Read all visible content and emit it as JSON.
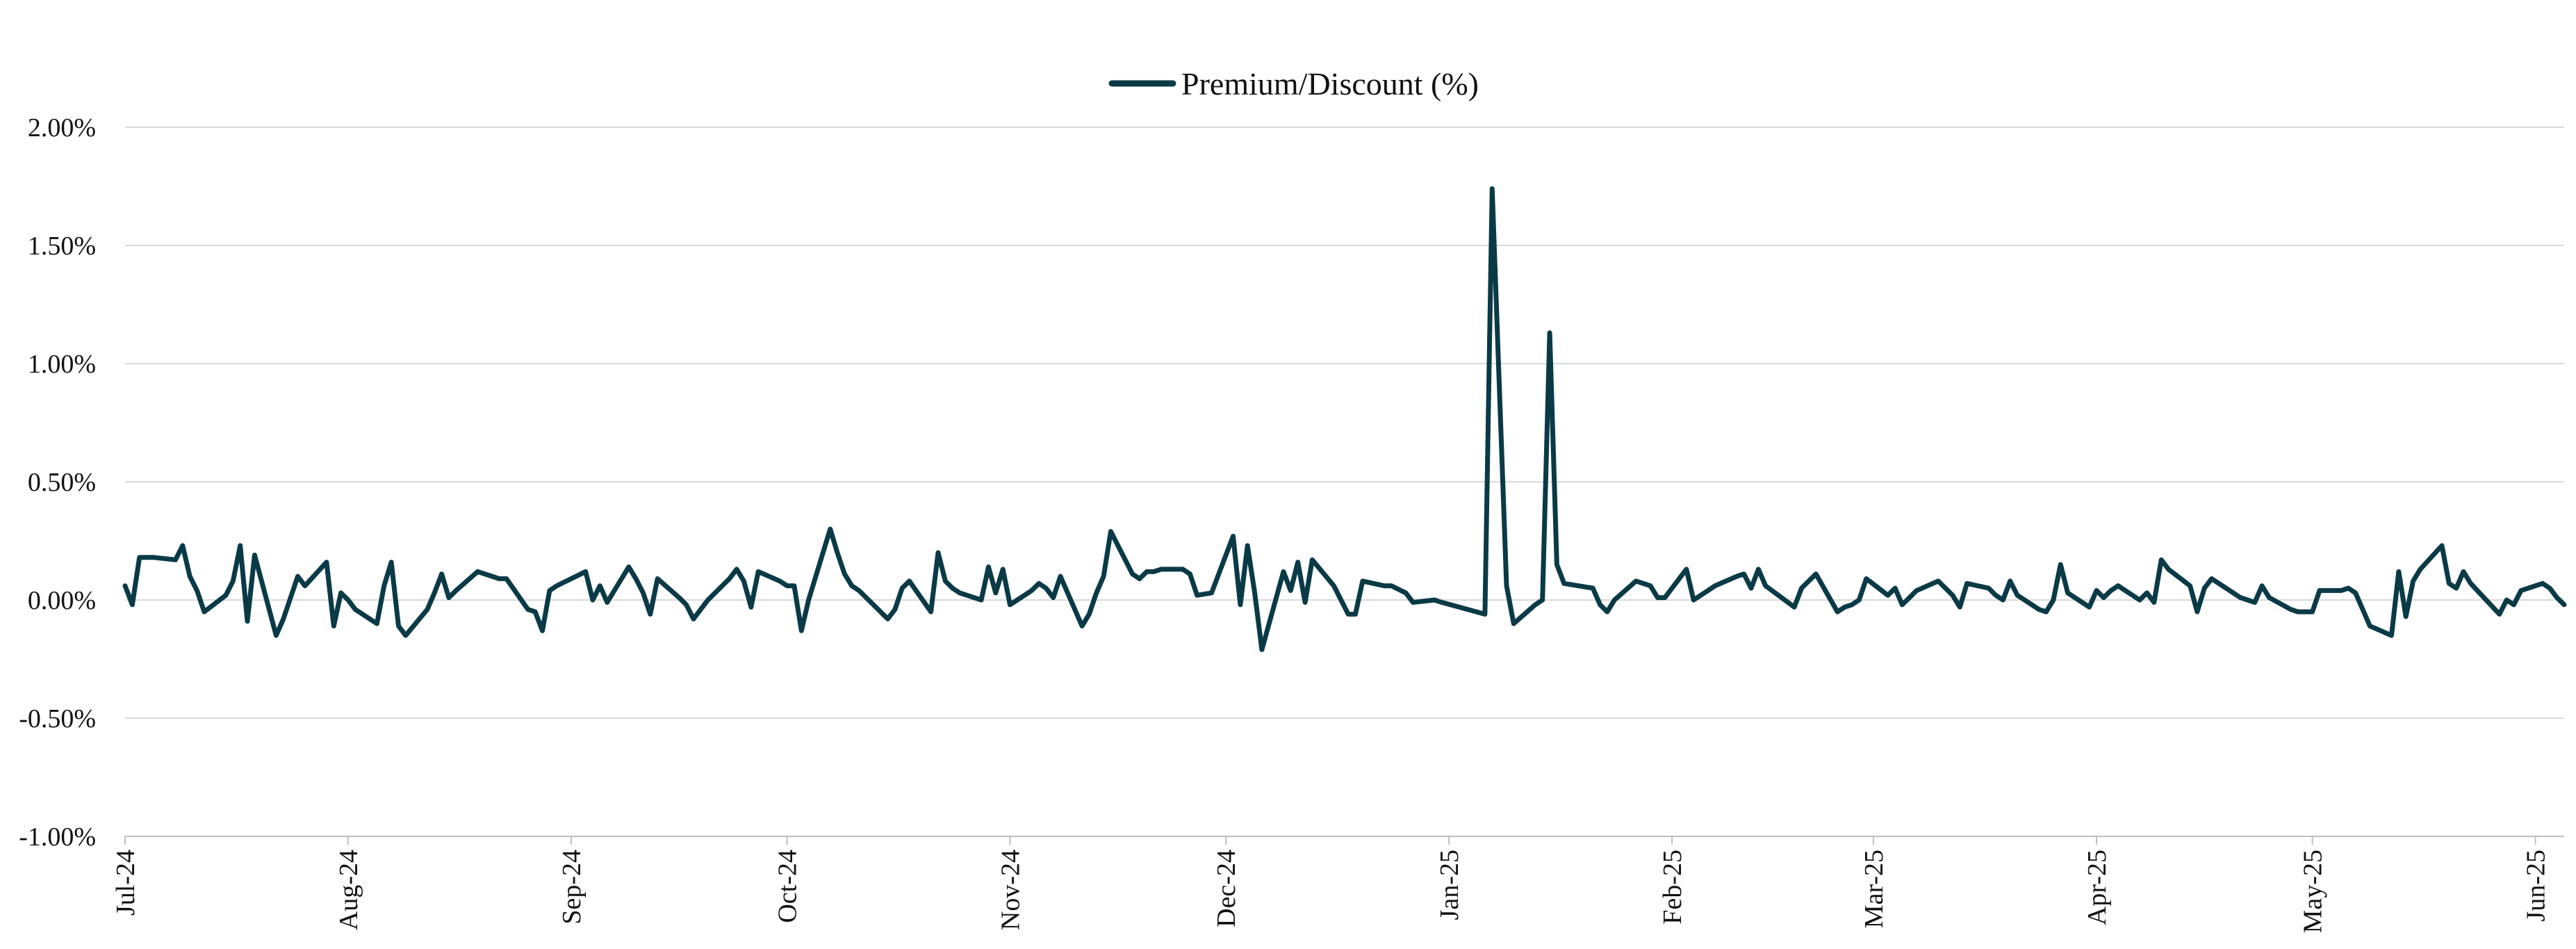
{
  "chart_data": {
    "type": "line",
    "title": "",
    "xlabel": "",
    "ylabel": "",
    "legend_position": "top-center",
    "grid": "horizontal",
    "line_color": "#0b3a47",
    "grid_color": "#d9d9d9",
    "y_ticks": [
      "-1.00%",
      "-0.50%",
      "0.00%",
      "0.50%",
      "1.00%",
      "1.50%",
      "2.00%"
    ],
    "x_ticks": [
      "Jul-24",
      "Aug-24",
      "Sep-24",
      "Oct-24",
      "Nov-24",
      "Dec-24",
      "Jan-25",
      "Feb-25",
      "Mar-25",
      "Apr-25",
      "May-25",
      "Jun-25"
    ],
    "ylim": [
      -1.0,
      2.0
    ],
    "xlim": [
      "2024-07-01",
      "2025-06-05"
    ],
    "series": [
      {
        "name": "Premium/Discount (%)",
        "points": [
          [
            "2024-07-01",
            0.06
          ],
          [
            "2024-07-02",
            -0.02
          ],
          [
            "2024-07-03",
            0.18
          ],
          [
            "2024-07-05",
            0.18
          ],
          [
            "2024-07-08",
            0.17
          ],
          [
            "2024-07-09",
            0.23
          ],
          [
            "2024-07-10",
            0.1
          ],
          [
            "2024-07-11",
            0.04
          ],
          [
            "2024-07-12",
            -0.05
          ],
          [
            "2024-07-15",
            0.02
          ],
          [
            "2024-07-16",
            0.08
          ],
          [
            "2024-07-17",
            0.23
          ],
          [
            "2024-07-18",
            -0.09
          ],
          [
            "2024-07-19",
            0.19
          ],
          [
            "2024-07-22",
            -0.15
          ],
          [
            "2024-07-23",
            -0.08
          ],
          [
            "2024-07-25",
            0.1
          ],
          [
            "2024-07-26",
            0.06
          ],
          [
            "2024-07-29",
            0.16
          ],
          [
            "2024-07-30",
            -0.11
          ],
          [
            "2024-07-31",
            0.03
          ],
          [
            "2024-08-01",
            0.0
          ],
          [
            "2024-08-02",
            -0.04
          ],
          [
            "2024-08-05",
            -0.1
          ],
          [
            "2024-08-06",
            0.06
          ],
          [
            "2024-08-07",
            0.16
          ],
          [
            "2024-08-08",
            -0.11
          ],
          [
            "2024-08-09",
            -0.15
          ],
          [
            "2024-08-12",
            -0.04
          ],
          [
            "2024-08-13",
            0.03
          ],
          [
            "2024-08-14",
            0.11
          ],
          [
            "2024-08-15",
            0.01
          ],
          [
            "2024-08-16",
            0.04
          ],
          [
            "2024-08-19",
            0.12
          ],
          [
            "2024-08-20",
            0.11
          ],
          [
            "2024-08-21",
            0.1
          ],
          [
            "2024-08-22",
            0.09
          ],
          [
            "2024-08-23",
            0.09
          ],
          [
            "2024-08-26",
            -0.04
          ],
          [
            "2024-08-27",
            -0.05
          ],
          [
            "2024-08-28",
            -0.13
          ],
          [
            "2024-08-29",
            0.04
          ],
          [
            "2024-08-30",
            0.06
          ],
          [
            "2024-09-03",
            0.12
          ],
          [
            "2024-09-04",
            0.0
          ],
          [
            "2024-09-05",
            0.06
          ],
          [
            "2024-09-06",
            -0.01
          ],
          [
            "2024-09-09",
            0.14
          ],
          [
            "2024-09-10",
            0.09
          ],
          [
            "2024-09-11",
            0.03
          ],
          [
            "2024-09-12",
            -0.06
          ],
          [
            "2024-09-13",
            0.09
          ],
          [
            "2024-09-16",
            0.01
          ],
          [
            "2024-09-17",
            -0.02
          ],
          [
            "2024-09-18",
            -0.08
          ],
          [
            "2024-09-19",
            -0.04
          ],
          [
            "2024-09-20",
            0.0
          ],
          [
            "2024-09-23",
            0.09
          ],
          [
            "2024-09-24",
            0.13
          ],
          [
            "2024-09-25",
            0.08
          ],
          [
            "2024-09-26",
            -0.03
          ],
          [
            "2024-09-27",
            0.12
          ],
          [
            "2024-09-30",
            0.08
          ],
          [
            "2024-10-01",
            0.06
          ],
          [
            "2024-10-02",
            0.06
          ],
          [
            "2024-10-03",
            -0.13
          ],
          [
            "2024-10-04",
            0.0
          ],
          [
            "2024-10-07",
            0.3
          ],
          [
            "2024-10-08",
            0.2
          ],
          [
            "2024-10-09",
            0.11
          ],
          [
            "2024-10-10",
            0.06
          ],
          [
            "2024-10-11",
            0.04
          ],
          [
            "2024-10-14",
            -0.05
          ],
          [
            "2024-10-15",
            -0.08
          ],
          [
            "2024-10-16",
            -0.04
          ],
          [
            "2024-10-17",
            0.05
          ],
          [
            "2024-10-18",
            0.08
          ],
          [
            "2024-10-21",
            -0.05
          ],
          [
            "2024-10-22",
            0.2
          ],
          [
            "2024-10-23",
            0.08
          ],
          [
            "2024-10-24",
            0.05
          ],
          [
            "2024-10-25",
            0.03
          ],
          [
            "2024-10-28",
            0.0
          ],
          [
            "2024-10-29",
            0.14
          ],
          [
            "2024-10-30",
            0.03
          ],
          [
            "2024-10-31",
            0.13
          ],
          [
            "2024-11-01",
            -0.02
          ],
          [
            "2024-11-04",
            0.04
          ],
          [
            "2024-11-05",
            0.07
          ],
          [
            "2024-11-06",
            0.05
          ],
          [
            "2024-11-07",
            0.01
          ],
          [
            "2024-11-08",
            0.1
          ],
          [
            "2024-11-11",
            -0.11
          ],
          [
            "2024-11-12",
            -0.06
          ],
          [
            "2024-11-13",
            0.03
          ],
          [
            "2024-11-14",
            0.1
          ],
          [
            "2024-11-15",
            0.29
          ],
          [
            "2024-11-18",
            0.11
          ],
          [
            "2024-11-19",
            0.09
          ],
          [
            "2024-11-20",
            0.12
          ],
          [
            "2024-11-21",
            0.12
          ],
          [
            "2024-11-22",
            0.13
          ],
          [
            "2024-11-25",
            0.13
          ],
          [
            "2024-11-26",
            0.11
          ],
          [
            "2024-11-27",
            0.02
          ],
          [
            "2024-11-29",
            0.03
          ],
          [
            "2024-12-02",
            0.27
          ],
          [
            "2024-12-03",
            -0.02
          ],
          [
            "2024-12-04",
            0.23
          ],
          [
            "2024-12-05",
            0.03
          ],
          [
            "2024-12-06",
            -0.21
          ],
          [
            "2024-12-09",
            0.12
          ],
          [
            "2024-12-10",
            0.04
          ],
          [
            "2024-12-11",
            0.16
          ],
          [
            "2024-12-12",
            -0.01
          ],
          [
            "2024-12-13",
            0.17
          ],
          [
            "2024-12-16",
            0.06
          ],
          [
            "2024-12-17",
            0.0
          ],
          [
            "2024-12-18",
            -0.06
          ],
          [
            "2024-12-19",
            -0.06
          ],
          [
            "2024-12-20",
            0.08
          ],
          [
            "2024-12-23",
            0.06
          ],
          [
            "2024-12-24",
            0.06
          ],
          [
            "2024-12-26",
            0.03
          ],
          [
            "2024-12-27",
            -0.01
          ],
          [
            "2024-12-30",
            0.0
          ],
          [
            "2024-12-31",
            -0.01
          ],
          [
            "2025-01-06",
            -0.06
          ],
          [
            "2025-01-07",
            1.74
          ],
          [
            "2025-01-09",
            0.06
          ],
          [
            "2025-01-10",
            -0.1
          ],
          [
            "2025-01-13",
            -0.02
          ],
          [
            "2025-01-14",
            0.0
          ],
          [
            "2025-01-15",
            1.13
          ],
          [
            "2025-01-16",
            0.15
          ],
          [
            "2025-01-17",
            0.07
          ],
          [
            "2025-01-21",
            0.05
          ],
          [
            "2025-01-22",
            -0.02
          ],
          [
            "2025-01-23",
            -0.05
          ],
          [
            "2025-01-24",
            0.0
          ],
          [
            "2025-01-27",
            0.08
          ],
          [
            "2025-01-28",
            0.07
          ],
          [
            "2025-01-29",
            0.06
          ],
          [
            "2025-01-30",
            0.01
          ],
          [
            "2025-01-31",
            0.01
          ],
          [
            "2025-02-03",
            0.13
          ],
          [
            "2025-02-04",
            0.0
          ],
          [
            "2025-02-05",
            0.02
          ],
          [
            "2025-02-06",
            0.04
          ],
          [
            "2025-02-07",
            0.06
          ],
          [
            "2025-02-10",
            0.1
          ],
          [
            "2025-02-11",
            0.11
          ],
          [
            "2025-02-12",
            0.05
          ],
          [
            "2025-02-13",
            0.13
          ],
          [
            "2025-02-14",
            0.06
          ],
          [
            "2025-02-18",
            -0.03
          ],
          [
            "2025-02-19",
            0.05
          ],
          [
            "2025-02-20",
            0.08
          ],
          [
            "2025-02-21",
            0.11
          ],
          [
            "2025-02-24",
            -0.05
          ],
          [
            "2025-02-25",
            -0.03
          ],
          [
            "2025-02-26",
            -0.02
          ],
          [
            "2025-02-27",
            0.0
          ],
          [
            "2025-02-28",
            0.09
          ],
          [
            "2025-03-03",
            0.02
          ],
          [
            "2025-03-04",
            0.05
          ],
          [
            "2025-03-05",
            -0.02
          ],
          [
            "2025-03-06",
            0.01
          ],
          [
            "2025-03-07",
            0.04
          ],
          [
            "2025-03-10",
            0.08
          ],
          [
            "2025-03-11",
            0.05
          ],
          [
            "2025-03-12",
            0.02
          ],
          [
            "2025-03-13",
            -0.03
          ],
          [
            "2025-03-14",
            0.07
          ],
          [
            "2025-03-17",
            0.05
          ],
          [
            "2025-03-18",
            0.02
          ],
          [
            "2025-03-19",
            0.0
          ],
          [
            "2025-03-20",
            0.08
          ],
          [
            "2025-03-21",
            0.02
          ],
          [
            "2025-03-24",
            -0.04
          ],
          [
            "2025-03-25",
            -0.05
          ],
          [
            "2025-03-26",
            0.0
          ],
          [
            "2025-03-27",
            0.15
          ],
          [
            "2025-03-28",
            0.03
          ],
          [
            "2025-03-31",
            -0.03
          ],
          [
            "2025-04-01",
            0.04
          ],
          [
            "2025-04-02",
            0.01
          ],
          [
            "2025-04-03",
            0.04
          ],
          [
            "2025-04-04",
            0.06
          ],
          [
            "2025-04-07",
            0.0
          ],
          [
            "2025-04-08",
            0.03
          ],
          [
            "2025-04-09",
            -0.01
          ],
          [
            "2025-04-10",
            0.17
          ],
          [
            "2025-04-11",
            0.13
          ],
          [
            "2025-04-14",
            0.06
          ],
          [
            "2025-04-15",
            -0.05
          ],
          [
            "2025-04-16",
            0.05
          ],
          [
            "2025-04-17",
            0.09
          ],
          [
            "2025-04-21",
            0.01
          ],
          [
            "2025-04-22",
            0.0
          ],
          [
            "2025-04-23",
            -0.01
          ],
          [
            "2025-04-24",
            0.06
          ],
          [
            "2025-04-25",
            0.01
          ],
          [
            "2025-04-28",
            -0.04
          ],
          [
            "2025-04-29",
            -0.05
          ],
          [
            "2025-04-30",
            -0.05
          ],
          [
            "2025-05-01",
            -0.05
          ],
          [
            "2025-05-02",
            0.04
          ],
          [
            "2025-05-05",
            0.04
          ],
          [
            "2025-05-06",
            0.05
          ],
          [
            "2025-05-07",
            0.03
          ],
          [
            "2025-05-08",
            -0.04
          ],
          [
            "2025-05-09",
            -0.11
          ],
          [
            "2025-05-12",
            -0.15
          ],
          [
            "2025-05-13",
            0.12
          ],
          [
            "2025-05-14",
            -0.07
          ],
          [
            "2025-05-15",
            0.08
          ],
          [
            "2025-05-16",
            0.13
          ],
          [
            "2025-05-19",
            0.23
          ],
          [
            "2025-05-20",
            0.07
          ],
          [
            "2025-05-21",
            0.05
          ],
          [
            "2025-05-22",
            0.12
          ],
          [
            "2025-05-23",
            0.07
          ],
          [
            "2025-05-27",
            -0.06
          ],
          [
            "2025-05-28",
            0.0
          ],
          [
            "2025-05-29",
            -0.02
          ],
          [
            "2025-05-30",
            0.04
          ],
          [
            "2025-06-02",
            0.07
          ],
          [
            "2025-06-03",
            0.05
          ],
          [
            "2025-06-04",
            0.01
          ],
          [
            "2025-06-05",
            -0.02
          ]
        ]
      }
    ]
  }
}
